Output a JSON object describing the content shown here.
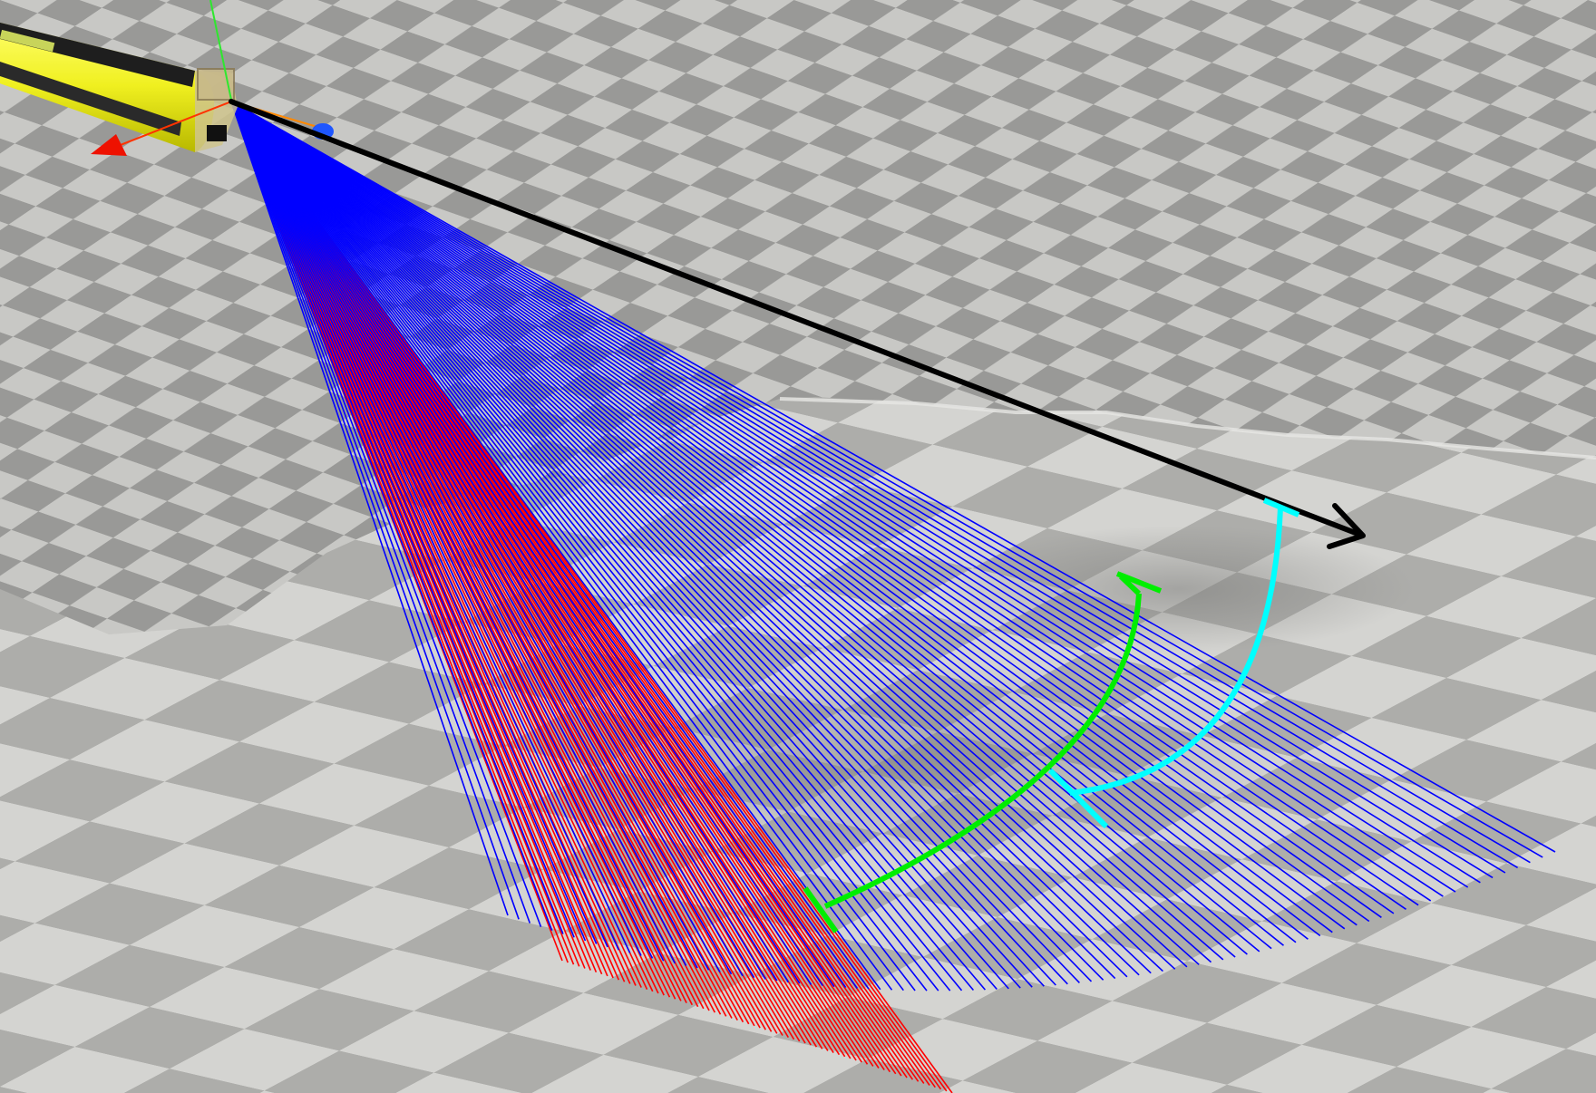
{
  "scene": {
    "description_free": true,
    "colors": {
      "floor_light": "#c9c9c6",
      "floor_dark": "#9a9a98",
      "terrain_light": "#d2d2cf",
      "terrain_dark": "#a8a8a5",
      "vehicle_body": "#f2f21e",
      "vehicle_stripe": "#1b1b1b",
      "sensor_box": "#b9a27a",
      "beams_primary": "#0000ff",
      "beams_secondary": "#ff0000",
      "direction_arrow": "#000000",
      "arc_horizontal": "#00ee00",
      "arc_vertical": "#00ffff",
      "axis_x": "#ff2200",
      "axis_y": "#00cc00",
      "axis_z": "#1050ff"
    },
    "elements": {
      "vehicle": "underwater-vehicle-body",
      "sensor": "sonar-sensor-origin",
      "axes": [
        "x-axis-arrow",
        "y-axis-line",
        "z-axis-marker"
      ],
      "arrow": "heading-arrow",
      "arcs": [
        "horizontal-aperture-arc",
        "vertical-aperture-arc"
      ],
      "beam_fans": [
        "blue-beam-fan",
        "red-beam-fan"
      ]
    }
  }
}
